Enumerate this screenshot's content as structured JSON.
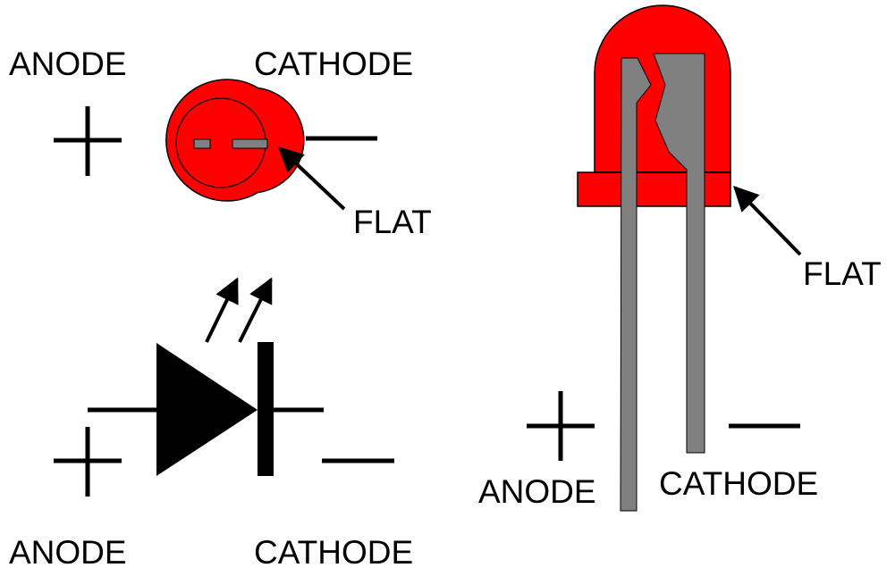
{
  "labels": {
    "top_anode": "ANODE",
    "top_cathode": "CATHODE",
    "top_flat": "FLAT",
    "bottom_anode": "ANODE",
    "bottom_cathode": "CATHODE",
    "side_anode": "ANODE",
    "side_cathode": "CATHODE",
    "side_flat": "FLAT"
  },
  "colors": {
    "led_body": "#ff0000",
    "lead": "#808080",
    "ink": "#000000"
  }
}
